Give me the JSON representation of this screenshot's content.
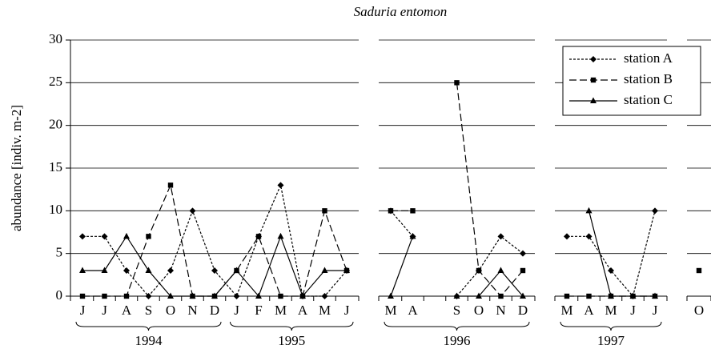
{
  "chart_data": {
    "type": "line",
    "title": "Saduria entomon",
    "ylabel": "abundance [indiv. m-2]",
    "ylim": [
      0,
      30
    ],
    "yticks": [
      0,
      5,
      10,
      15,
      20,
      25,
      30
    ],
    "grid": true,
    "legend": "upper right",
    "series": [
      {
        "name": "station A",
        "color": "#000000",
        "marker": "diamond",
        "dash": "3,2"
      },
      {
        "name": "station B",
        "color": "#000000",
        "marker": "square",
        "dash": "9,4"
      },
      {
        "name": "station C",
        "color": "#000000",
        "marker": "triangle",
        "dash": "none"
      }
    ],
    "panels": [
      {
        "groups": [
          {
            "label": "1994",
            "categories": [
              "J",
              "J",
              "A",
              "S",
              "O",
              "N",
              "D"
            ]
          },
          {
            "label": "1995",
            "categories": [
              "J",
              "F",
              "M",
              "A",
              "M",
              "J"
            ]
          }
        ],
        "values": [
          [
            7,
            7,
            3,
            0,
            3,
            10,
            3,
            0,
            7,
            13,
            0,
            0,
            3
          ],
          [
            0,
            0,
            0,
            7,
            13,
            0,
            0,
            3,
            7,
            0,
            0,
            10,
            3
          ],
          [
            3,
            3,
            7,
            3,
            0,
            0,
            0,
            3,
            0,
            7,
            0,
            3,
            3
          ]
        ]
      },
      {
        "groups": [
          {
            "label": "1996",
            "categories": [
              "M",
              "A",
              null,
              "S",
              "O",
              "N",
              "D"
            ]
          }
        ],
        "values": [
          [
            10,
            7,
            null,
            0,
            3,
            7,
            5
          ],
          [
            10,
            10,
            null,
            25,
            3,
            0,
            3
          ],
          [
            0,
            7,
            null,
            0,
            0,
            3,
            0
          ]
        ]
      },
      {
        "groups": [
          {
            "label": "1997",
            "categories": [
              "M",
              "A",
              "M",
              "J",
              "J"
            ]
          }
        ],
        "values": [
          [
            7,
            7,
            3,
            0,
            10
          ],
          [
            0,
            0,
            0,
            0,
            0
          ],
          [
            null,
            10,
            0,
            0,
            0
          ]
        ]
      },
      {
        "groups": [
          {
            "label": null,
            "categories": [
              "O"
            ]
          }
        ],
        "values": [
          [
            null
          ],
          [
            3
          ],
          [
            null
          ]
        ]
      }
    ]
  }
}
